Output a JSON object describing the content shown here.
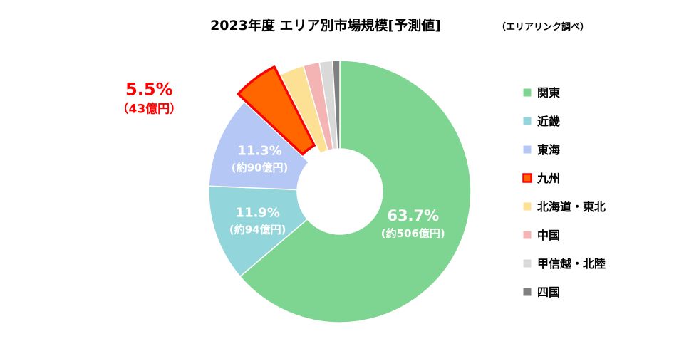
{
  "chart_data": {
    "type": "pie",
    "variant": "donut",
    "title": "2023年度 エリア別市場規模[予測値]",
    "subtitle": "（エリアリンク調べ）",
    "legend_position": "right",
    "categories": [
      "関東",
      "近畿",
      "東海",
      "九州",
      "北海道・東北",
      "中国",
      "甲信越・北陸",
      "四国"
    ],
    "values": [
      63.7,
      11.9,
      11.3,
      5.5,
      3.0,
      2.0,
      1.6,
      0.9
    ],
    "colors": [
      "#7ED591",
      "#92D6DB",
      "#B4C7F5",
      "#FF6600",
      "#FCE195",
      "#F4B4B4",
      "#D9D9D9",
      "#808080"
    ],
    "highlight": {
      "category": "九州",
      "border_color": "#FF0000"
    },
    "data_labels": [
      {
        "category": "関東",
        "percent": "63.7%",
        "amount": "(約506億円)",
        "color": "#ffffff"
      },
      {
        "category": "近畿",
        "percent": "11.9%",
        "amount": "(約94億円)",
        "color": "#ffffff"
      },
      {
        "category": "東海",
        "percent": "11.3%",
        "amount": "(約90億円)",
        "color": "#ffffff"
      },
      {
        "category": "九州",
        "percent": "5.5%",
        "amount": "（43億円）",
        "color": "#FF0000"
      }
    ]
  }
}
